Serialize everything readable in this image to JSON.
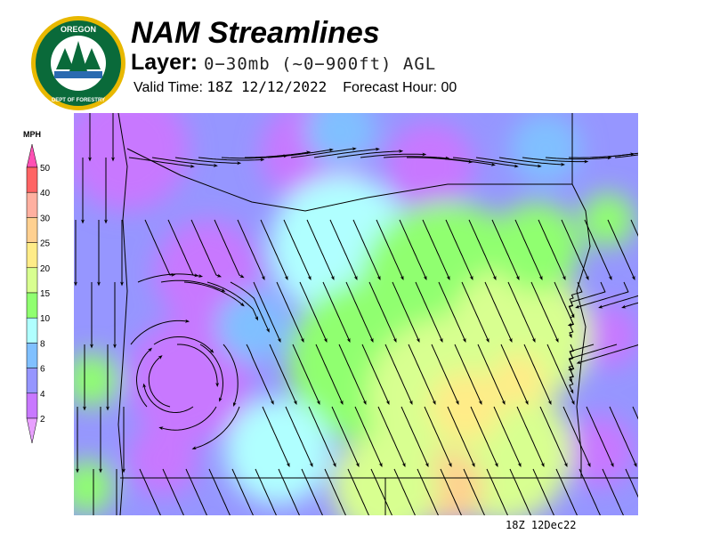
{
  "header": {
    "title": "NAM Streamlines",
    "layer_label": "Layer:",
    "layer_value": "0−30mb (~0−900ft) AGL",
    "valid_label": "Valid Time:",
    "valid_time": "18Z 12/12/2022",
    "forecast_label": "Forecast Hour:",
    "forecast_hour": "00"
  },
  "logo": {
    "text_top": "OREGON",
    "text_bottom": "DEPARTMENT OF FORESTRY"
  },
  "legend": {
    "unit": "MPH",
    "levels": [
      "2",
      "4",
      "6",
      "8",
      "10",
      "15",
      "20",
      "25",
      "30",
      "40",
      "50"
    ],
    "colors": [
      "#c878ff",
      "#9696ff",
      "#80c0ff",
      "#b0ffff",
      "#90ff70",
      "#d8ff90",
      "#ffec88",
      "#ffd090",
      "#ffb0a0",
      "#ff6464"
    ],
    "below_color": "#e8a0ff",
    "above_color": "#ff50b4"
  },
  "map": {
    "timestamp": "18Z 12Dec22"
  }
}
